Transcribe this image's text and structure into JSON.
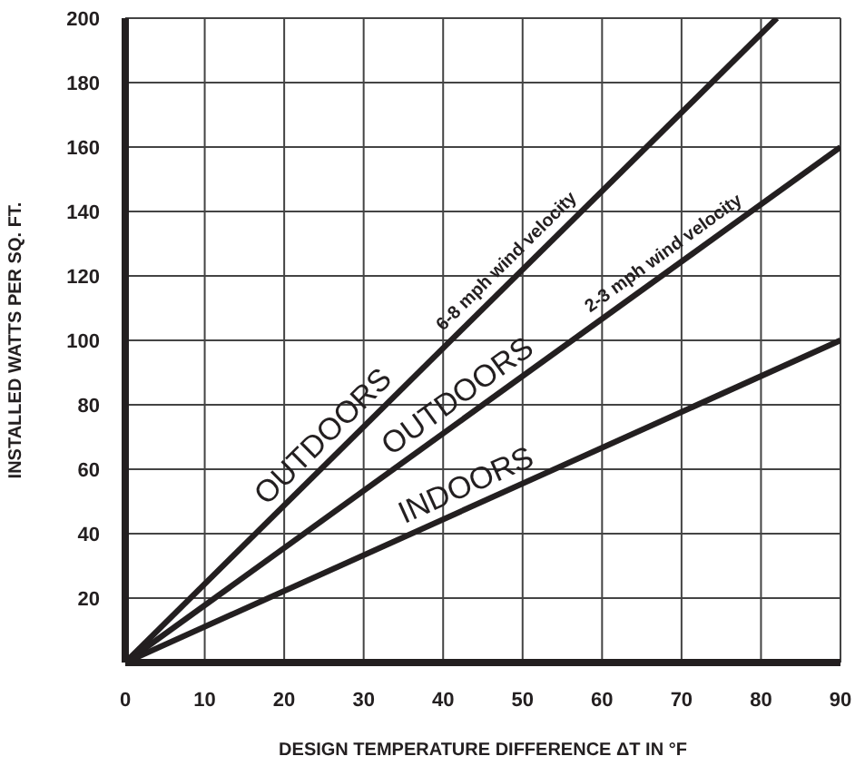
{
  "chart_data": {
    "type": "line",
    "xlabel": "DESIGN TEMPERATURE DIFFERENCE ΔT IN °F",
    "ylabel": "INSTALLED WATTS PER SQ. FT.",
    "series": [
      {
        "x": [
          0,
          82
        ],
        "values": [
          0,
          200
        ],
        "color": "#231f20"
      },
      {
        "x": [
          0,
          90
        ],
        "values": [
          0,
          160
        ],
        "color": "#231f20"
      },
      {
        "x": [
          0,
          90
        ],
        "values": [
          0,
          100
        ],
        "color": "#231f20"
      }
    ],
    "xlim": [
      0,
      90
    ],
    "ylim": [
      0,
      200
    ],
    "xticks": [
      0,
      10,
      20,
      30,
      40,
      50,
      60,
      70,
      80,
      90
    ],
    "yticks": [
      {
        "value": 0,
        "label": null
      },
      20,
      40,
      60,
      80,
      100,
      120,
      140,
      160,
      180,
      200
    ],
    "grid": true,
    "marker": "none",
    "line_style": "solid",
    "legend": false,
    "annotations": [
      {
        "text": "OUTDOORS",
        "x": 26.8,
        "y": 65.4
      },
      {
        "text": "6-8  mph wind velocity",
        "x": 49.5,
        "y": 120.7
      },
      {
        "text": "OUTDOORS",
        "x": 43.4,
        "y": 77.2
      },
      {
        "text": "2-3  mph wind velocity",
        "x": 69,
        "y": 122.7
      },
      {
        "text": "INDOORS",
        "x": 44,
        "y": 48.9
      }
    ]
  }
}
